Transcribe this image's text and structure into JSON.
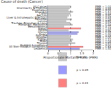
{
  "chart_data": {
    "type": "bar",
    "orientation": "horizontal",
    "title": "Cause of death (Cancer)",
    "x_label": "Proportionate Mortality Ratio (PMR)",
    "categories": [
      "All Cancer",
      "Oral Cavity & Pharynx",
      "Esophagus",
      "Stomach",
      "Colon",
      "Rectum",
      "Liver & Intrahepatic Bile Duct",
      "Pancreas",
      "Larynx",
      "Trachea, Bronchus & Lung",
      "Malignant Melanoma",
      "Mesothelioma",
      "Breast",
      "Cervix",
      "Uterus",
      "Ovary",
      "Prostate",
      "Bladder",
      "Kidney",
      "Brain",
      "Thyroid",
      "Hodgkin Lymphoma",
      "All Non-Hodgkin Lymphoma",
      "Leukemia"
    ],
    "series": [
      {
        "name": "Non-sig",
        "color": "#c8c8c8",
        "values": [
          1.02,
          0.95,
          0.9,
          1.1,
          0.98,
          0.92,
          0.85,
          1.05,
          0.8,
          0.97,
          1.08,
          0.7,
          null,
          0.9,
          null,
          null,
          0.95,
          1.0,
          1.1,
          1.05,
          1.2,
          0.9,
          null,
          null
        ],
        "value_labels": [
          "PMR = 1.02",
          "PMR = 0.95",
          "PMR = 0.90",
          "PMR = 1.10",
          "PMR = 0.98",
          "PMR = 0.92",
          "PMR = 0.85",
          "PMR = 1.05",
          "PMR = 0.80",
          "PMR = 0.97",
          "PMR = 1.08",
          "PMR = 0.70",
          null,
          "PMR = 0.90",
          null,
          null,
          "PMR = 0.95",
          "PMR = 1.00",
          "PMR = 1.10",
          "PMR = 1.05",
          "PMR = 1.20",
          "PMR = 0.90",
          null,
          null
        ]
      },
      {
        "name": "p < 0.05",
        "color": "#9999ff",
        "values": [
          null,
          null,
          null,
          null,
          null,
          null,
          null,
          null,
          null,
          null,
          null,
          null,
          null,
          null,
          1.35,
          1.3,
          null,
          null,
          null,
          null,
          null,
          null,
          null,
          1.4
        ],
        "value_labels": [
          null,
          null,
          null,
          null,
          null,
          null,
          null,
          null,
          null,
          null,
          null,
          null,
          null,
          null,
          "PMR = 1.35",
          "PMR = 1.30",
          null,
          null,
          null,
          null,
          null,
          null,
          null,
          "PMR = 1.40"
        ]
      },
      {
        "name": "p < 0.01",
        "color": "#ff7f7f",
        "values": [
          null,
          null,
          null,
          null,
          null,
          null,
          null,
          null,
          null,
          null,
          null,
          null,
          1.45,
          null,
          null,
          null,
          null,
          null,
          null,
          null,
          null,
          null,
          1.55,
          null
        ],
        "value_labels": [
          null,
          null,
          null,
          null,
          null,
          null,
          null,
          null,
          null,
          null,
          null,
          null,
          "PMR = 1.45",
          null,
          null,
          null,
          null,
          null,
          null,
          null,
          null,
          null,
          "PMR = 1.55",
          null
        ]
      }
    ],
    "reference_line": 1,
    "xlim": [
      0,
      2
    ],
    "xticks": [
      0,
      0.5,
      1,
      1.5,
      2
    ],
    "grid": false,
    "legend": "bottom"
  }
}
